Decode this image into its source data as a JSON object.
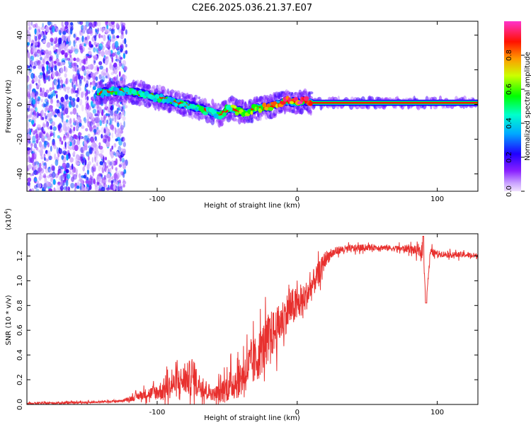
{
  "title": "C2E6.2025.036.21.37.E07",
  "chart_data": [
    {
      "type": "heatmap",
      "panel": "spectrogram",
      "xlabel": "Height of straight line (km)",
      "ylabel": "Frequency (Hz)",
      "xlim": [
        -193,
        129
      ],
      "ylim": [
        -50,
        48
      ],
      "xticks": [
        -100,
        0,
        100
      ],
      "xtick_labels": [
        "-100",
        "0",
        "100"
      ],
      "yticks": [
        -40,
        -20,
        0,
        20,
        40
      ],
      "ytick_labels": [
        "-40",
        "-20",
        "0",
        "20",
        "40"
      ],
      "noise_region_x": [
        -193,
        -122
      ],
      "ridge": {
        "x": [
          -142,
          -122,
          -110,
          -100,
          -90,
          -80,
          -70,
          -62,
          -55,
          -48,
          -40,
          -35,
          -30,
          -22,
          -15,
          -8,
          0,
          5,
          10,
          20,
          40,
          60,
          80,
          90,
          100,
          129
        ],
        "freq": [
          7,
          8,
          6,
          4,
          2,
          0,
          -2,
          -4,
          -6,
          -2,
          -4,
          -5,
          -2,
          -2,
          0,
          2,
          1,
          2,
          1,
          1,
          1,
          1,
          1,
          1,
          1,
          1
        ],
        "amplitude": [
          0.35,
          0.45,
          0.45,
          0.45,
          0.4,
          0.4,
          0.45,
          0.45,
          0.4,
          0.55,
          0.6,
          0.6,
          0.65,
          0.7,
          0.8,
          0.85,
          0.85,
          0.85,
          0.88,
          0.9,
          0.92,
          0.92,
          0.92,
          0.92,
          0.92,
          0.92
        ]
      },
      "colorbar": {
        "label": "Normalized spectral amplitude",
        "range": [
          0,
          1
        ],
        "ticks": [
          0.0,
          0.2,
          0.4,
          0.6,
          0.8
        ],
        "tick_labels": [
          "0.0",
          "0.2",
          "0.4",
          "0.6",
          "0.8"
        ],
        "colors": [
          "#ffffff",
          "#c8a0ff",
          "#6a00ff",
          "#0000ff",
          "#00ffff",
          "#00ff00",
          "#ffff00",
          "#ff8000",
          "#ff0000",
          "#ff00ff"
        ]
      }
    },
    {
      "type": "line",
      "panel": "snr",
      "xlabel": "Height of straight line (km)",
      "ylabel": "SNR (10 * v/v)",
      "y_multiplier": "(x10",
      "y_multiplier_exp": "4",
      "y_multiplier_close": ")",
      "xlim": [
        -193,
        129
      ],
      "ylim": [
        0,
        1.38
      ],
      "xticks": [
        -100,
        0,
        100
      ],
      "xtick_labels": [
        "-100",
        "0",
        "100"
      ],
      "yticks": [
        0.0,
        0.2,
        0.4,
        0.6,
        0.8,
        1.0,
        1.2
      ],
      "ytick_labels": [
        "0.0",
        "0.2",
        "0.4",
        "0.6",
        "0.8",
        "1.0",
        "1.2"
      ],
      "color": "#e8302e",
      "series": [
        {
          "name": "SNR",
          "x": [
            -193,
            -180,
            -160,
            -140,
            -125,
            -118,
            -110,
            -100,
            -95,
            -90,
            -85,
            -80,
            -75,
            -70,
            -65,
            -60,
            -55,
            -50,
            -45,
            -40,
            -35,
            -30,
            -25,
            -20,
            -15,
            -10,
            -5,
            0,
            5,
            10,
            15,
            18,
            20,
            25,
            30,
            40,
            50,
            60,
            70,
            80,
            85,
            90,
            92,
            95,
            100,
            110,
            120,
            129
          ],
          "y": [
            0.01,
            0.01,
            0.015,
            0.02,
            0.03,
            0.05,
            0.08,
            0.1,
            0.12,
            0.15,
            0.18,
            0.2,
            0.22,
            0.16,
            0.12,
            0.08,
            0.1,
            0.14,
            0.18,
            0.22,
            0.3,
            0.35,
            0.45,
            0.55,
            0.6,
            0.7,
            0.78,
            0.8,
            0.85,
            0.95,
            1.05,
            1.12,
            1.18,
            1.22,
            1.25,
            1.26,
            1.27,
            1.27,
            1.26,
            1.26,
            1.24,
            1.22,
            0.82,
            1.23,
            1.22,
            1.21,
            1.21,
            1.2
          ],
          "noise_amplitude": [
            0.01,
            0.01,
            0.01,
            0.01,
            0.01,
            0.03,
            0.05,
            0.08,
            0.12,
            0.12,
            0.15,
            0.15,
            0.2,
            0.12,
            0.1,
            0.06,
            0.12,
            0.15,
            0.18,
            0.2,
            0.22,
            0.25,
            0.25,
            0.25,
            0.22,
            0.2,
            0.2,
            0.18,
            0.15,
            0.15,
            0.12,
            0.1,
            0.08,
            0.05,
            0.04,
            0.04,
            0.03,
            0.03,
            0.03,
            0.04,
            0.05,
            0.06,
            0,
            0.05,
            0.03,
            0.03,
            0.03,
            0.03
          ]
        }
      ]
    }
  ]
}
